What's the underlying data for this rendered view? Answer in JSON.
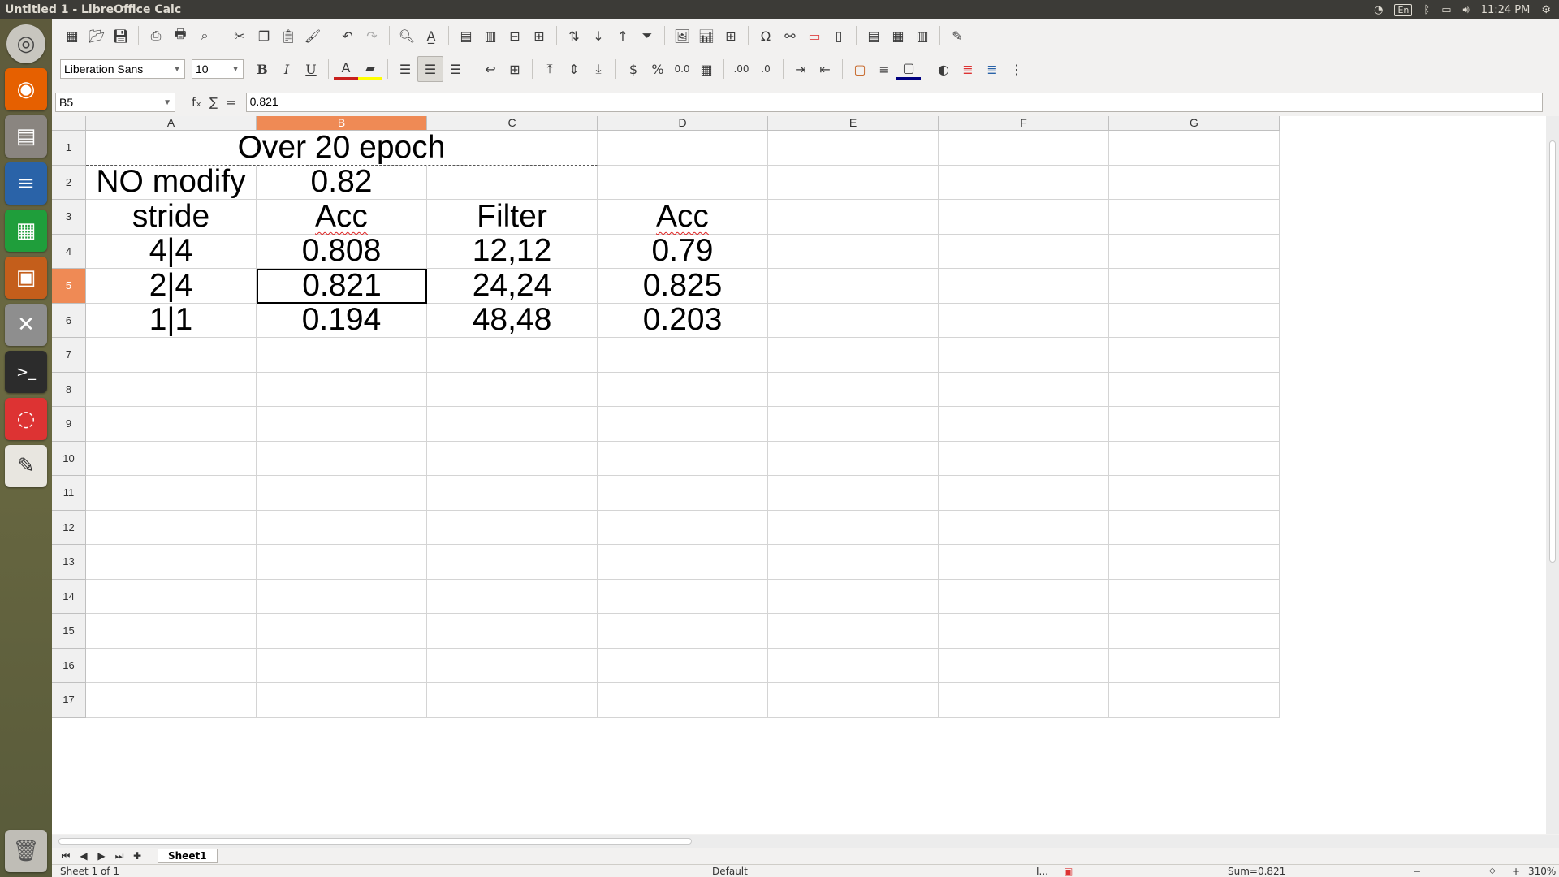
{
  "window": {
    "title": "Untitled 1 - LibreOffice Calc"
  },
  "indicators": {
    "lang": "En",
    "clock": "11:24 PM"
  },
  "launcher": [
    "ubuntu-icon",
    "firefox-icon",
    "files-icon",
    "writer-icon",
    "calc-icon",
    "impress-icon",
    "settings-icon",
    "terminal-icon",
    "document-viewer-icon",
    "text-editor-icon",
    "trash-icon"
  ],
  "toolbar": {
    "font_name": "Liberation Sans",
    "font_size": "10"
  },
  "formula_bar": {
    "cell_ref": "B5",
    "fx_symbol": "fₓ",
    "sum_symbol": "∑",
    "equals_symbol": "=",
    "content": "0.821"
  },
  "columns": [
    "A",
    "B",
    "C",
    "D",
    "E",
    "F",
    "G"
  ],
  "rows": [
    "1",
    "2",
    "3",
    "4",
    "5",
    "6",
    "7",
    "8",
    "9",
    "10",
    "11",
    "12",
    "13",
    "14",
    "15",
    "16",
    "17"
  ],
  "cells": {
    "A1": "Over 20 epoch",
    "A2": "NO modify",
    "B2": "0.82",
    "A3": "stride",
    "B3": "Acc",
    "C3": "Filter",
    "D3": "Acc",
    "A4": "4|4",
    "B4": "0.808",
    "C4": "12,12",
    "D4": "0.79",
    "A5": "2|4",
    "B5": "0.821",
    "C5": "24,24",
    "D5": "0.825",
    "A6": "1|1",
    "B6": "0.194",
    "C6": "48,48",
    "D6": "0.203"
  },
  "sheet": {
    "tab": "Sheet1"
  },
  "status": {
    "sheet_info": "Sheet 1 of 1",
    "page_style": "Default",
    "sum": "Sum=0.821",
    "zoom": "310%"
  }
}
